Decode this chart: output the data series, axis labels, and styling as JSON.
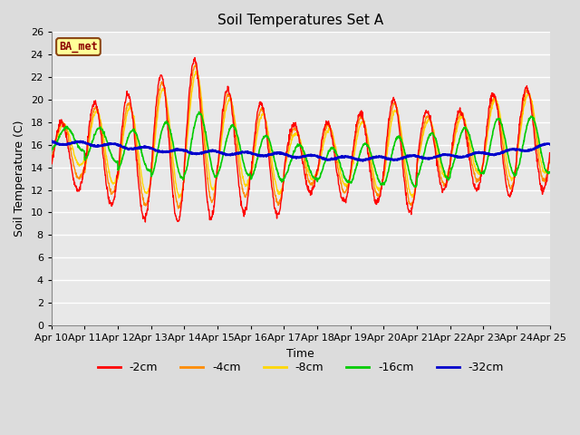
{
  "title": "Soil Temperatures Set A",
  "xlabel": "Time",
  "ylabel": "Soil Temperature (C)",
  "xlim": [
    0,
    15
  ],
  "ylim": [
    0,
    26
  ],
  "yticks": [
    0,
    2,
    4,
    6,
    8,
    10,
    12,
    14,
    16,
    18,
    20,
    22,
    24,
    26
  ],
  "xtick_labels": [
    "Apr 10",
    "Apr 11",
    "Apr 12",
    "Apr 13",
    "Apr 14",
    "Apr 15",
    "Apr 16",
    "Apr 17",
    "Apr 18",
    "Apr 19",
    "Apr 20",
    "Apr 21",
    "Apr 22",
    "Apr 23",
    "Apr 24",
    "Apr 25"
  ],
  "annotation_text": "BA_met",
  "annotation_color": "#8B0000",
  "annotation_bg": "#FFFF99",
  "line_colors": {
    "-2cm": "#FF0000",
    "-4cm": "#FF8C00",
    "-8cm": "#FFD700",
    "-16cm": "#00CC00",
    "-32cm": "#0000CC"
  },
  "legend_labels": [
    "-2cm",
    "-4cm",
    "-8cm",
    "-16cm",
    "-32cm"
  ],
  "bg_color": "#DCDCDC",
  "plot_bg": "#E8E8E8",
  "grid_color": "#FFFFFF"
}
